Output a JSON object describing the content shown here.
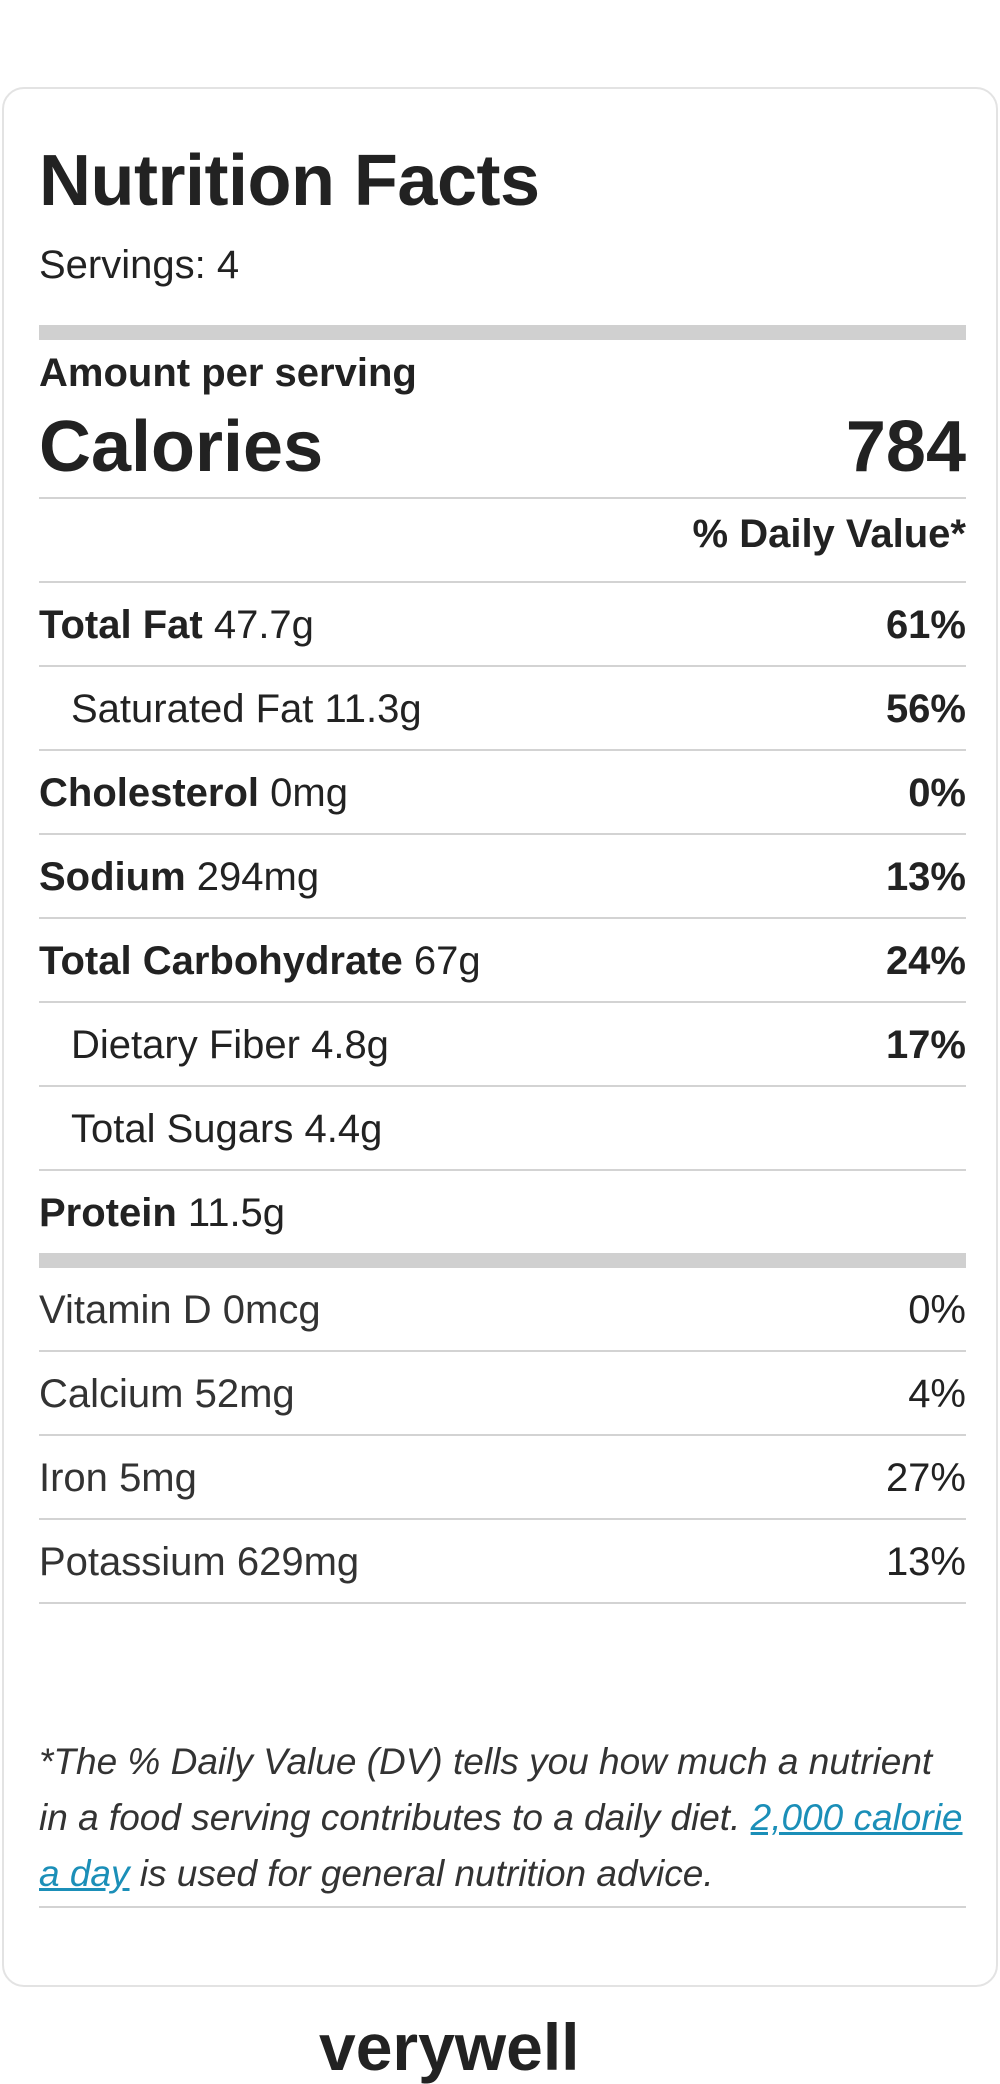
{
  "label": {
    "title": "Nutrition Facts",
    "servings": "Servings: 4",
    "amount_per_serving": "Amount per serving",
    "calories_label": "Calories",
    "calories_value": "784",
    "dv_header": "% Daily Value*"
  },
  "nutrients": [
    {
      "name": "Total Fat",
      "amount": "47.7g",
      "dv": "61%"
    },
    {
      "name": "Saturated Fat",
      "amount": "11.3g",
      "dv": "56%"
    },
    {
      "name": "Cholesterol",
      "amount": "0mg",
      "dv": "0%"
    },
    {
      "name": "Sodium",
      "amount": "294mg",
      "dv": "13%"
    },
    {
      "name": "Total Carbohydrate",
      "amount": "67g",
      "dv": "24%"
    },
    {
      "name": "Dietary Fiber",
      "amount": "4.8g",
      "dv": "17%"
    },
    {
      "name": "Total Sugars",
      "amount": "4.4g",
      "dv": ""
    },
    {
      "name": "Protein",
      "amount": "11.5g",
      "dv": ""
    }
  ],
  "vitamins": [
    {
      "name": "Vitamin D",
      "amount": "0mcg",
      "dv": "0%"
    },
    {
      "name": "Calcium",
      "amount": "52mg",
      "dv": "4%"
    },
    {
      "name": "Iron",
      "amount": "5mg",
      "dv": "27%"
    },
    {
      "name": "Potassium",
      "amount": "629mg",
      "dv": "13%"
    }
  ],
  "footnote": {
    "prefix": "*The % Daily Value (DV) tells you how much a nutrient in a food serving contributes to a daily diet.",
    "link_text": "2,000 calorie a day",
    "suffix": "is used for general nutrition advice."
  },
  "brand": "verywell",
  "colors": {
    "link": "#1b8fb8",
    "bar": "#d0d0d0",
    "rule": "#d3d3d3"
  }
}
